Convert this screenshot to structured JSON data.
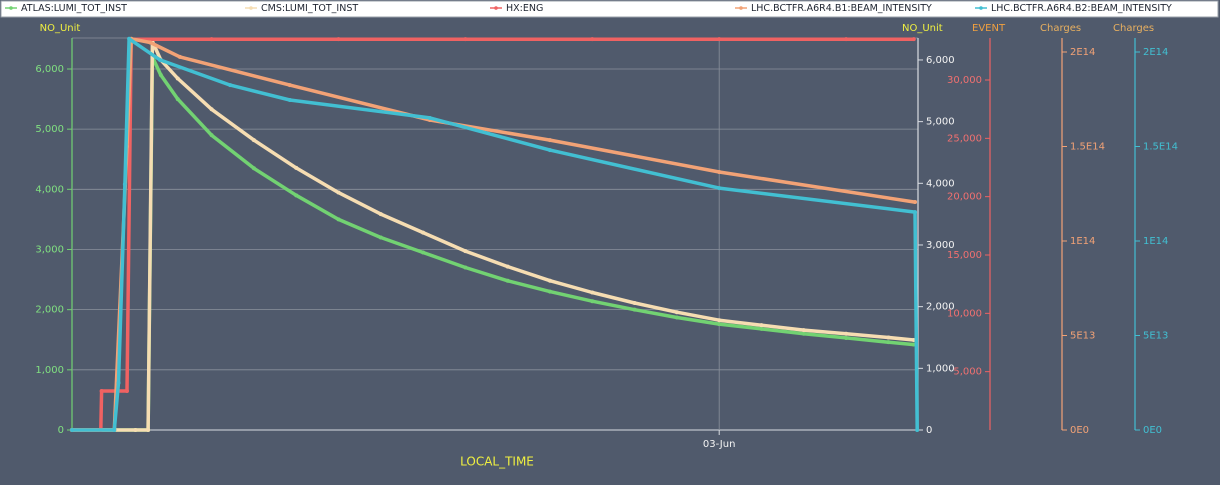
{
  "chart_data": {
    "type": "line",
    "xlabel": "LOCAL_TIME",
    "xlim": [
      -15.3,
      4.7
    ],
    "xticks": [
      {
        "value": 0,
        "label": "03-Jun"
      }
    ],
    "ylabel": "NO_Unit",
    "ylim": [
      0,
      6515
    ],
    "yticks": [
      0,
      {
        "value": 1000,
        "label": "1,000"
      },
      {
        "value": 2000,
        "label": "2,000"
      },
      {
        "value": 3000,
        "label": "3,000"
      },
      {
        "value": 4000,
        "label": "4,000"
      },
      {
        "value": 5000,
        "label": "5,000"
      },
      {
        "value": 6000,
        "label": "6,000"
      }
    ],
    "y2label": "NO_Unit",
    "y2lim": [
      0,
      6356
    ],
    "y2ticks": [
      0,
      {
        "value": 1000,
        "label": "1,000"
      },
      {
        "value": 2000,
        "label": "2,000"
      },
      {
        "value": 3000,
        "label": "3,000"
      },
      {
        "value": 4000,
        "label": "4,000"
      },
      {
        "value": 5000,
        "label": "5,000"
      },
      {
        "value": 6000,
        "label": "6,000"
      }
    ],
    "y3label": "EVENT",
    "y3lim": [
      0,
      33600
    ],
    "y3ticks": [
      {
        "value": 5000,
        "label": "5,000"
      },
      {
        "value": 10000,
        "label": "10,000"
      },
      {
        "value": 15000,
        "label": "15,000"
      },
      {
        "value": 20000,
        "label": "20,000"
      },
      {
        "value": 25000,
        "label": "25,000"
      },
      {
        "value": 30000,
        "label": "30,000"
      }
    ],
    "y4label": "Charges",
    "y4lim": [
      0,
      207400000000000
    ],
    "y4ticks": [
      {
        "value": 0,
        "label": "0E0"
      },
      {
        "value": 50000000000000,
        "label": "5E13"
      },
      {
        "value": 100000000000000,
        "label": "1E14"
      },
      {
        "value": 150000000000000,
        "label": "1.5E14"
      },
      {
        "value": 200000000000000,
        "label": "2E14"
      }
    ],
    "y5label": "Charges",
    "y5lim": [
      0,
      207400000000000
    ],
    "y5ticks": [
      {
        "value": 0,
        "label": "0E0"
      },
      {
        "value": 50000000000000,
        "label": "5E13"
      },
      {
        "value": 100000000000000,
        "label": "1E14"
      },
      {
        "value": 150000000000000,
        "label": "1.5E14"
      },
      {
        "value": 200000000000000,
        "label": "2E14"
      }
    ],
    "grid": true,
    "series": [
      {
        "name": "ATLAS:LUMI_TOT_INST",
        "color": "#72d272",
        "axis": "y",
        "x": [
          -15.3,
          -14.3,
          -13.8,
          -13.5,
          -13.4,
          -13.2,
          -12.8,
          -12,
          -11,
          -10,
          -9,
          -8,
          -7,
          -6,
          -5,
          -4,
          -3,
          -2,
          -1,
          0,
          1,
          2,
          3,
          4,
          4.6
        ],
        "values": [
          0,
          0,
          0,
          0,
          6200,
          5900,
          5500,
          4900,
          4350,
          3900,
          3500,
          3200,
          2950,
          2700,
          2480,
          2300,
          2140,
          2000,
          1870,
          1760,
          1680,
          1600,
          1530,
          1460,
          1420
        ]
      },
      {
        "name": "CMS:LUMI_TOT_INST",
        "color": "#f6ddb2",
        "axis": "y2",
        "x": [
          -15.3,
          -14.3,
          -13.8,
          -13.5,
          -13.4,
          -13.2,
          -12.8,
          -12,
          -11,
          -10,
          -9,
          -8,
          -7,
          -6,
          -5,
          -4,
          -3,
          -2,
          -1,
          0,
          1,
          2,
          3,
          4,
          4.6
        ],
        "values": [
          0,
          0,
          0,
          0,
          6300,
          6000,
          5700,
          5200,
          4700,
          4250,
          3850,
          3500,
          3200,
          2900,
          2650,
          2420,
          2230,
          2060,
          1910,
          1780,
          1700,
          1620,
          1560,
          1500,
          1460
        ]
      },
      {
        "name": "HX:ENG",
        "color": "#f06262",
        "axis": "y3",
        "x": [
          -15.3,
          -14.62,
          -14.6,
          -14.0,
          -13.9,
          -12,
          -9,
          -6,
          -3,
          0,
          3,
          4.6
        ],
        "values": [
          0,
          0,
          3340,
          3340,
          33500,
          33500,
          33500,
          33500,
          33500,
          33500,
          33500,
          33500
        ]
      },
      {
        "name": "LHC.BCTFR.A6R4.B1:BEAM_INTENSITY",
        "color": "#f2a276",
        "axis": "y4",
        "x": [
          -15.3,
          -14.3,
          -14.0,
          -13.9,
          -13.45,
          -12.75,
          -10.15,
          -6.84,
          -4,
          0,
          4.63
        ],
        "values": [
          0,
          0,
          150000000000000,
          207000000000000,
          205000000000000,
          197400000000000,
          182500000000000,
          164000000000000,
          153400000000000,
          136500000000000,
          120600000000000
        ]
      },
      {
        "name": "LHC.BCTFR.A6R4.B2:BEAM_INTENSITY",
        "color": "#42bfd2",
        "axis": "y5",
        "x": [
          -15.3,
          -14.3,
          -14.2,
          -14.05,
          -13.95,
          -13.22,
          -11.56,
          -10.15,
          -6.84,
          -4,
          0,
          4.63,
          4.68
        ],
        "values": [
          0,
          0,
          25000000000000,
          130000000000000,
          207000000000000,
          195800000000000,
          182500000000000,
          174600000000000,
          165100000000000,
          148100000000000,
          128000000000000,
          115300000000000,
          0
        ]
      }
    ]
  }
}
